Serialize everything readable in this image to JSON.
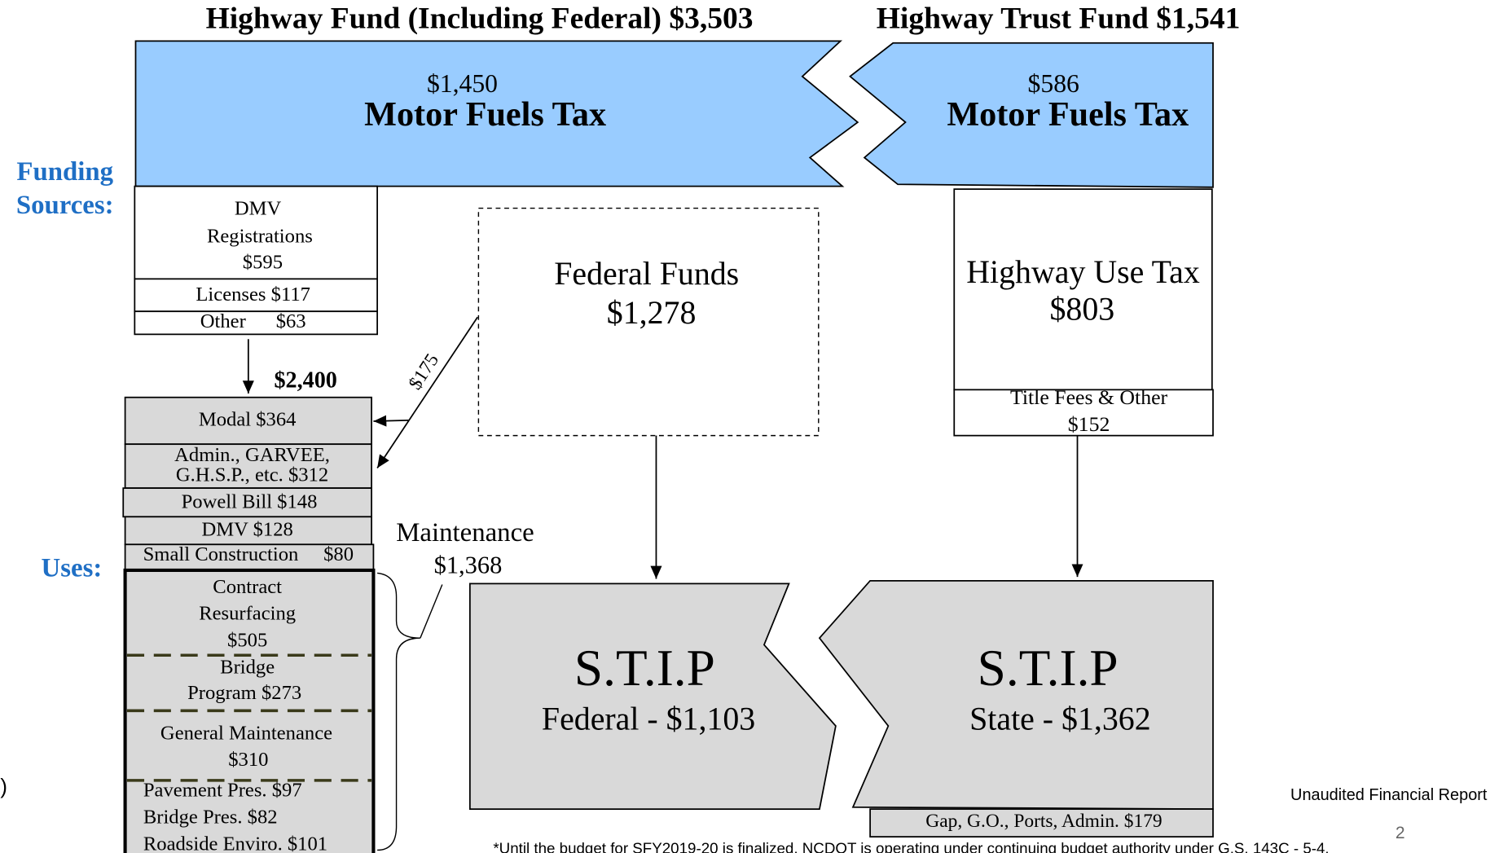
{
  "headers": {
    "highway_fund": "Highway Fund (Including Federal) $3,503",
    "trust_fund": "Highway Trust Fund  $1,541"
  },
  "sidebar": {
    "funding_sources": [
      "Funding",
      "Sources:"
    ],
    "uses": "Uses:",
    "edge_mark": ")"
  },
  "sources": {
    "hf_motor_fuels": {
      "amount": "$1,450",
      "label": "Motor Fuels Tax"
    },
    "htf_motor_fuels": {
      "amount": "$586",
      "label": "Motor Fuels Tax"
    },
    "dmv_registrations": [
      "DMV",
      "Registrations",
      "$595"
    ],
    "licenses": "Licenses $117",
    "other": "Other      $63",
    "federal_funds": [
      "Federal Funds",
      "$1,278"
    ],
    "highway_use_tax": [
      "Highway Use Tax",
      "$803"
    ],
    "title_fees": [
      "Title Fees & Other",
      "$152"
    ]
  },
  "flows": {
    "subtotal": "$2,400",
    "federal_transfer": "$175"
  },
  "uses": {
    "modal": "Modal $364",
    "admin": [
      "Admin., GARVEE,",
      "G.H.S.P., etc. $312"
    ],
    "powell_bill": "Powell Bill $148",
    "dmv": "DMV $128",
    "small_construction": "Small Construction     $80",
    "contract_resurfacing": [
      "Contract",
      "Resurfacing",
      "$505"
    ],
    "bridge_program": [
      "Bridge",
      "Program $273"
    ],
    "general_maintenance": [
      "General Maintenance",
      "$310"
    ],
    "preservation": [
      "Pavement Pres. $97",
      "Bridge Pres.  $82",
      "Roadside Enviro.  $101"
    ],
    "maintenance": [
      "Maintenance",
      "$1,368"
    ],
    "stip_federal": [
      "S.T.I.P",
      "Federal - $1,103"
    ],
    "stip_state": [
      "S.T.I.P",
      "State - $1,362"
    ],
    "gap": "Gap, G.O., Ports, Admin. $179"
  },
  "footer": {
    "note": "*Until the budget for SFY2019-20 is finalized, NCDOT is operating under continuing budget authority under G.S. 143C - 5-4.",
    "report": "Unaudited Financial Report",
    "page": "2"
  }
}
